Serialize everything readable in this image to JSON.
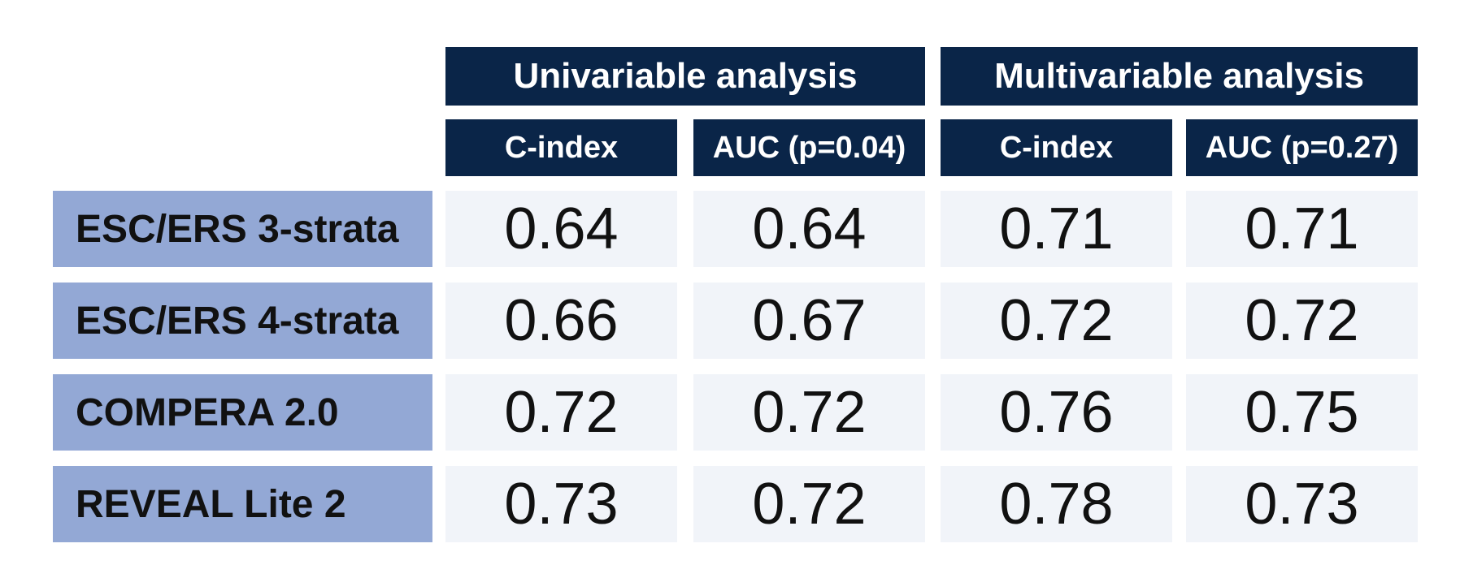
{
  "figure": {
    "column_groups": [
      {
        "label": "Univariable analysis",
        "columns": [
          "C-index",
          "AUC (p=0.04)"
        ]
      },
      {
        "label": "Multivariable analysis",
        "columns": [
          "C-index",
          "AUC (p=0.27)"
        ]
      }
    ],
    "rows": [
      {
        "label": "ESC/ERS 3-strata",
        "values": [
          "0.64",
          "0.64",
          "0.71",
          "0.71"
        ]
      },
      {
        "label": "ESC/ERS 4-strata",
        "values": [
          "0.66",
          "0.67",
          "0.72",
          "0.72"
        ]
      },
      {
        "label": "COMPERA 2.0",
        "values": [
          "0.72",
          "0.72",
          "0.76",
          "0.75"
        ]
      },
      {
        "label": "REVEAL Lite 2",
        "values": [
          "0.73",
          "0.72",
          "0.78",
          "0.73"
        ]
      }
    ],
    "colors": {
      "header_bg": "#0a2548",
      "row_header_bg": "#93a8d5",
      "cell_bg": "#f1f4f9",
      "header_text": "#ffffff",
      "body_text": "#111111",
      "page_bg": "#ffffff"
    }
  },
  "chart_data": {
    "type": "table",
    "column_groups": [
      "Univariable analysis",
      "Univariable analysis",
      "Multivariable analysis",
      "Multivariable analysis"
    ],
    "columns": [
      "C-index",
      "AUC (p=0.04)",
      "C-index",
      "AUC (p=0.27)"
    ],
    "row_labels": [
      "ESC/ERS 3-strata",
      "ESC/ERS 4-strata",
      "COMPERA 2.0",
      "REVEAL Lite 2"
    ],
    "values": [
      [
        0.64,
        0.64,
        0.71,
        0.71
      ],
      [
        0.66,
        0.67,
        0.72,
        0.72
      ],
      [
        0.72,
        0.72,
        0.76,
        0.75
      ],
      [
        0.73,
        0.72,
        0.78,
        0.73
      ]
    ]
  }
}
